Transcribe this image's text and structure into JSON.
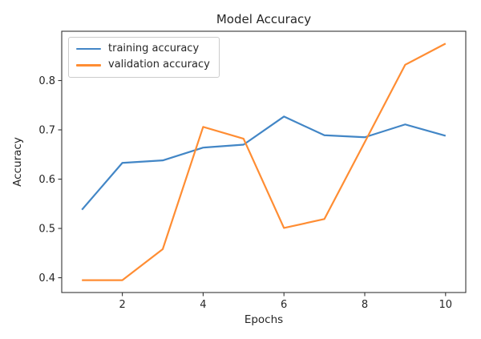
{
  "chart_data": {
    "type": "line",
    "title": "Model Accuracy",
    "xlabel": "Epochs",
    "ylabel": "Accuracy",
    "x": [
      1,
      2,
      3,
      4,
      5,
      6,
      7,
      8,
      9,
      10
    ],
    "series": [
      {
        "name": "training accuracy",
        "color": "#4286c6",
        "values": [
          0.538,
          0.633,
          0.638,
          0.664,
          0.67,
          0.727,
          0.689,
          0.685,
          0.711,
          0.688
        ]
      },
      {
        "name": "validation accuracy",
        "color": "#ff8d33",
        "values": [
          0.395,
          0.395,
          0.458,
          0.706,
          0.682,
          0.501,
          0.519,
          0.675,
          0.832,
          0.875
        ]
      }
    ],
    "xlim": [
      0.5,
      10.5
    ],
    "ylim": [
      0.37,
      0.9
    ],
    "xticks": [
      2,
      4,
      6,
      8,
      10
    ],
    "xtick_labels": [
      "2",
      "4",
      "6",
      "8",
      "10"
    ],
    "yticks": [
      0.4,
      0.5,
      0.6,
      0.7,
      0.8
    ],
    "ytick_labels": [
      "0.4",
      "0.5",
      "0.6",
      "0.7",
      "0.8"
    ],
    "grid": false,
    "legend_position": "upper-left",
    "line_width": 2.2,
    "spine_color": "#343434",
    "tick_color": "#343434",
    "text_color": "#262626",
    "background": "#ffffff"
  }
}
